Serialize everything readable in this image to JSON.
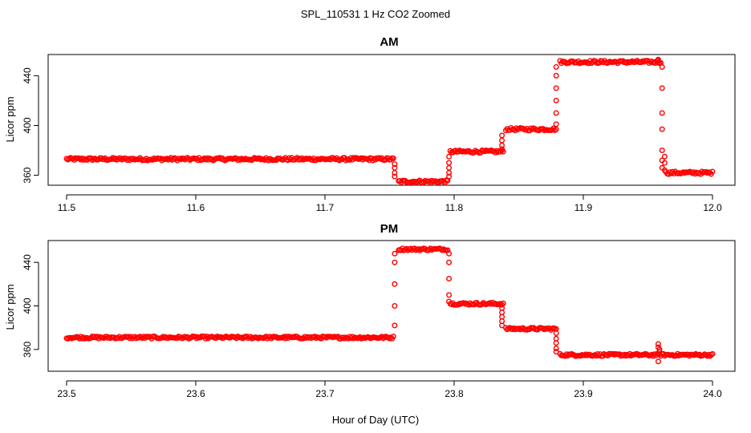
{
  "figure": {
    "suptitle": "SPL_110531  1 Hz CO2 Zoomed",
    "xlabel": "Hour of Day (UTC)"
  },
  "colors": {
    "points": "#ff0000",
    "axes": "#000000",
    "background": "#ffffff"
  },
  "chart_data": [
    {
      "type": "scatter",
      "title": "AM",
      "xlabel": "",
      "ylabel": "Licor ppm",
      "xlim": [
        11.5,
        12.0
      ],
      "ylim": [
        352,
        457
      ],
      "xticks": [
        11.5,
        11.6,
        11.7,
        11.8,
        11.9,
        12.0
      ],
      "xticklabels": [
        "11.5",
        "11.6",
        "11.7",
        "11.8",
        "11.9",
        "12.0"
      ],
      "yticks": [
        360,
        400,
        440
      ],
      "yticklabels": [
        "360",
        "400",
        "440"
      ],
      "marker": "open-circle",
      "grid": false,
      "segments": [
        {
          "x_start": 11.5,
          "x_end": 11.753,
          "y": 373
        },
        {
          "x_start": 11.757,
          "x_end": 11.795,
          "y": 355
        },
        {
          "x_start": 11.797,
          "x_end": 11.838,
          "y": 379
        },
        {
          "x_start": 11.84,
          "x_end": 11.879,
          "y": 397
        },
        {
          "x_start": 11.882,
          "x_end": 11.96,
          "y": 451
        },
        {
          "x_start": 11.964,
          "x_end": 12.0,
          "y": 362
        }
      ],
      "transitions": [
        {
          "x": 11.754,
          "y": [
            369,
            366,
            362,
            359
          ]
        },
        {
          "x": 11.796,
          "y": [
            359,
            362,
            366,
            370,
            375
          ]
        },
        {
          "x": 11.837,
          "y": [
            381,
            384,
            388,
            392
          ]
        },
        {
          "x": 11.879,
          "y": [
            401,
            410,
            420,
            430,
            440,
            447
          ]
        },
        {
          "x": 11.958,
          "y": [
            452,
            453
          ]
        },
        {
          "x": 11.961,
          "y": [
            447,
            430,
            410,
            397,
            380,
            372,
            366
          ]
        },
        {
          "x": 11.963,
          "y": [
            375,
            370,
            364
          ]
        }
      ]
    },
    {
      "type": "scatter",
      "title": "PM",
      "xlabel": "",
      "ylabel": "Licor ppm",
      "xlim": [
        23.5,
        24.0
      ],
      "ylim": [
        340,
        460
      ],
      "xticks": [
        23.5,
        23.6,
        23.7,
        23.8,
        23.9,
        24.0
      ],
      "xticklabels": [
        "23.5",
        "23.6",
        "23.7",
        "23.8",
        "23.9",
        "24.0"
      ],
      "yticks": [
        360,
        400,
        440
      ],
      "yticklabels": [
        "360",
        "400",
        "440"
      ],
      "marker": "open-circle",
      "grid": false,
      "segments": [
        {
          "x_start": 23.5,
          "x_end": 23.753,
          "y": 371
        },
        {
          "x_start": 23.757,
          "x_end": 23.795,
          "y": 452
        },
        {
          "x_start": 23.797,
          "x_end": 23.838,
          "y": 402
        },
        {
          "x_start": 23.84,
          "x_end": 23.879,
          "y": 379
        },
        {
          "x_start": 23.882,
          "x_end": 24.0,
          "y": 355
        }
      ],
      "transitions": [
        {
          "x": 23.754,
          "y": [
            382,
            400,
            420,
            440,
            448
          ]
        },
        {
          "x": 23.796,
          "y": [
            448,
            440,
            425,
            410,
            404
          ]
        },
        {
          "x": 23.837,
          "y": [
            398,
            394,
            390,
            386,
            382
          ]
        },
        {
          "x": 23.879,
          "y": [
            375,
            370,
            366,
            361,
            358
          ]
        },
        {
          "x": 23.958,
          "y": [
            349,
            362,
            365
          ]
        },
        {
          "x": 23.959,
          "y": [
            358,
            360
          ]
        }
      ]
    }
  ]
}
